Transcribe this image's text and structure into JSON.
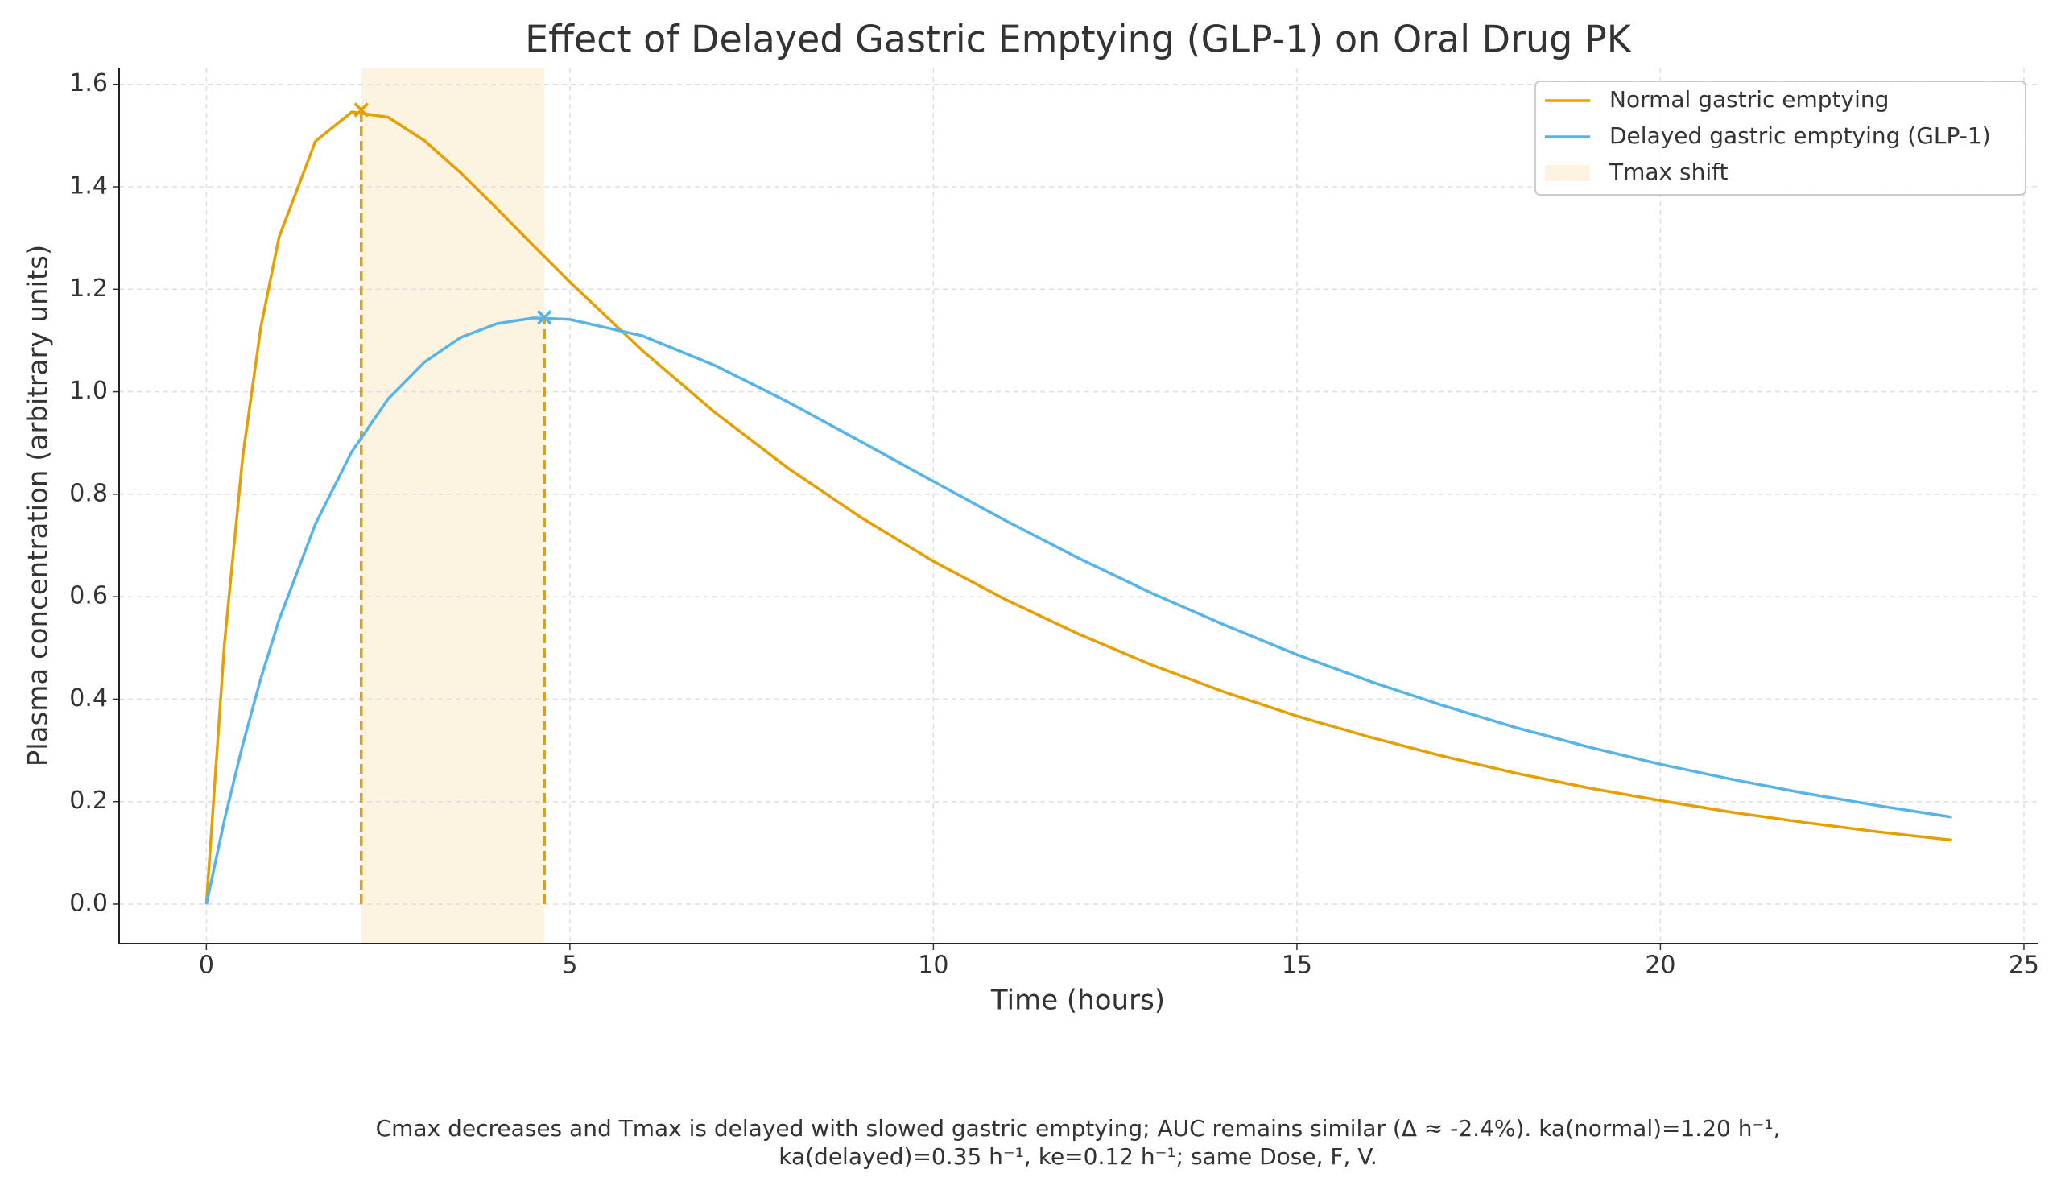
{
  "chart_data": {
    "type": "line",
    "title": "Effect of Delayed Gastric Emptying (GLP-1) on Oral Drug PK",
    "x_label": "Time (hours)",
    "y_label": "Plasma concentration (arbitrary units)",
    "caption": [
      "Cmax decreases and Tmax is delayed with slowed gastric emptying; AUC remains similar (Δ ≈ -2.4%). ka(normal)=1.20 h⁻¹,",
      "ka(delayed)=0.35 h⁻¹, ke=0.12 h⁻¹; same Dose, F, V."
    ],
    "x": [
      0,
      0.25,
      0.5,
      0.75,
      1,
      1.5,
      2,
      2.5,
      3,
      3.5,
      4,
      4.5,
      5,
      6,
      7,
      8,
      9,
      10,
      11,
      12,
      13,
      14,
      15,
      16,
      17,
      18,
      19,
      20,
      21,
      22,
      23,
      24
    ],
    "series": [
      {
        "name": "Normal gastric emptying",
        "color": "#e69f00",
        "values": [
          0,
          0.51,
          0.873,
          1.127,
          1.302,
          1.489,
          1.546,
          1.536,
          1.49,
          1.427,
          1.357,
          1.285,
          1.214,
          1.08,
          0.959,
          0.851,
          0.755,
          0.669,
          0.594,
          0.527,
          0.467,
          0.414,
          0.367,
          0.326,
          0.289,
          0.256,
          0.227,
          0.202,
          0.179,
          0.159,
          0.141,
          0.125
        ],
        "peak": {
          "x": 2.13,
          "y": 1.55
        }
      },
      {
        "name": "Delayed gastric emptying (GLP-1)",
        "color": "#56b4e9",
        "values": [
          0,
          0.165,
          0.311,
          0.441,
          0.555,
          0.742,
          0.883,
          0.986,
          1.058,
          1.106,
          1.133,
          1.144,
          1.141,
          1.109,
          1.051,
          0.98,
          0.903,
          0.825,
          0.748,
          0.675,
          0.607,
          0.545,
          0.487,
          0.435,
          0.388,
          0.345,
          0.307,
          0.273,
          0.243,
          0.216,
          0.192,
          0.17
        ],
        "peak": {
          "x": 4.65,
          "y": 1.145
        }
      }
    ],
    "span": {
      "name": "Tmax shift",
      "x": [
        2.13,
        4.65
      ],
      "color": "#fdf3e1"
    },
    "vline_color": "#e69f00",
    "xlim": [
      -1.2,
      25.2
    ],
    "xticks": [
      0,
      5,
      10,
      15,
      20,
      25
    ],
    "ylim": [
      -0.077,
      1.631
    ],
    "yticks": [
      {
        "value": 0,
        "label": "0.0"
      },
      0.2,
      0.4,
      0.6,
      0.8,
      {
        "value": 1,
        "label": "1.0"
      },
      1.2,
      1.4,
      1.6
    ],
    "grid": true,
    "legend": "upper right"
  }
}
